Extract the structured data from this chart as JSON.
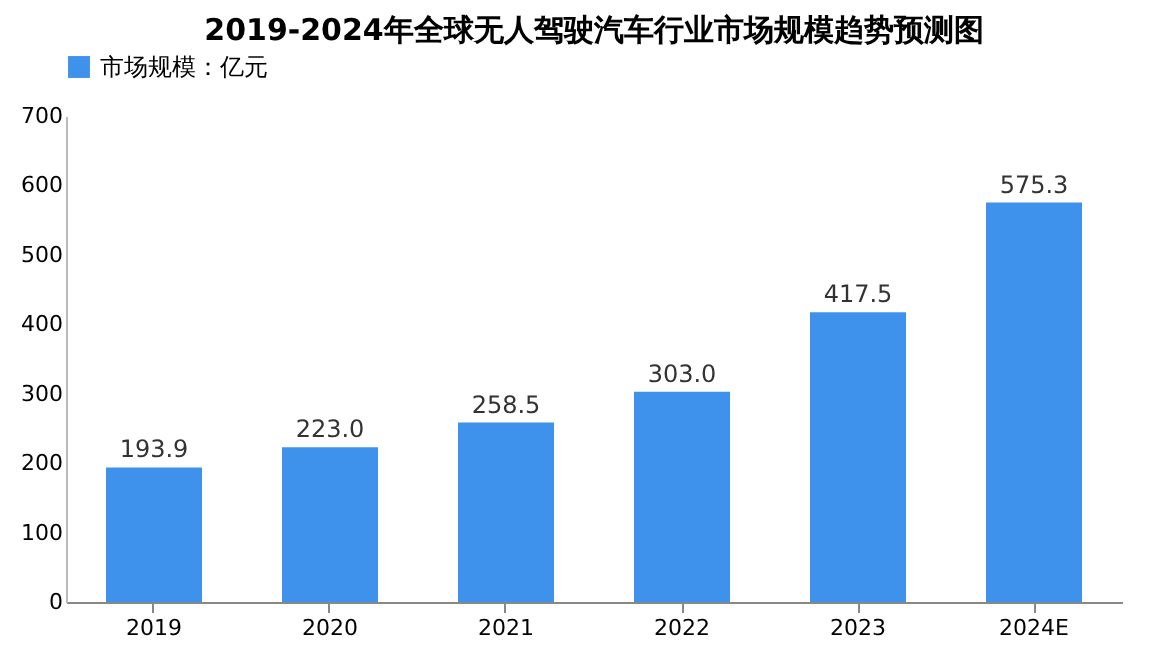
{
  "chart_data": {
    "type": "bar",
    "title": "2019-2024年全球无人驾驶汽车行业市场规模趋势预测图",
    "categories": [
      "2019",
      "2020",
      "2021",
      "2022",
      "2023",
      "2024E"
    ],
    "series": [
      {
        "name": "市场规模：亿元",
        "color": "#3f92ec",
        "values": [
          193.9,
          223.0,
          258.5,
          303.0,
          417.5,
          575.3
        ]
      }
    ],
    "value_labels": [
      "193.9",
      "223.0",
      "258.5",
      "303.0",
      "417.5",
      "575.3"
    ],
    "ylim": [
      0,
      700
    ],
    "yticks": [
      0,
      100,
      200,
      300,
      400,
      500,
      600,
      700
    ],
    "grid": false,
    "legend": "top"
  }
}
